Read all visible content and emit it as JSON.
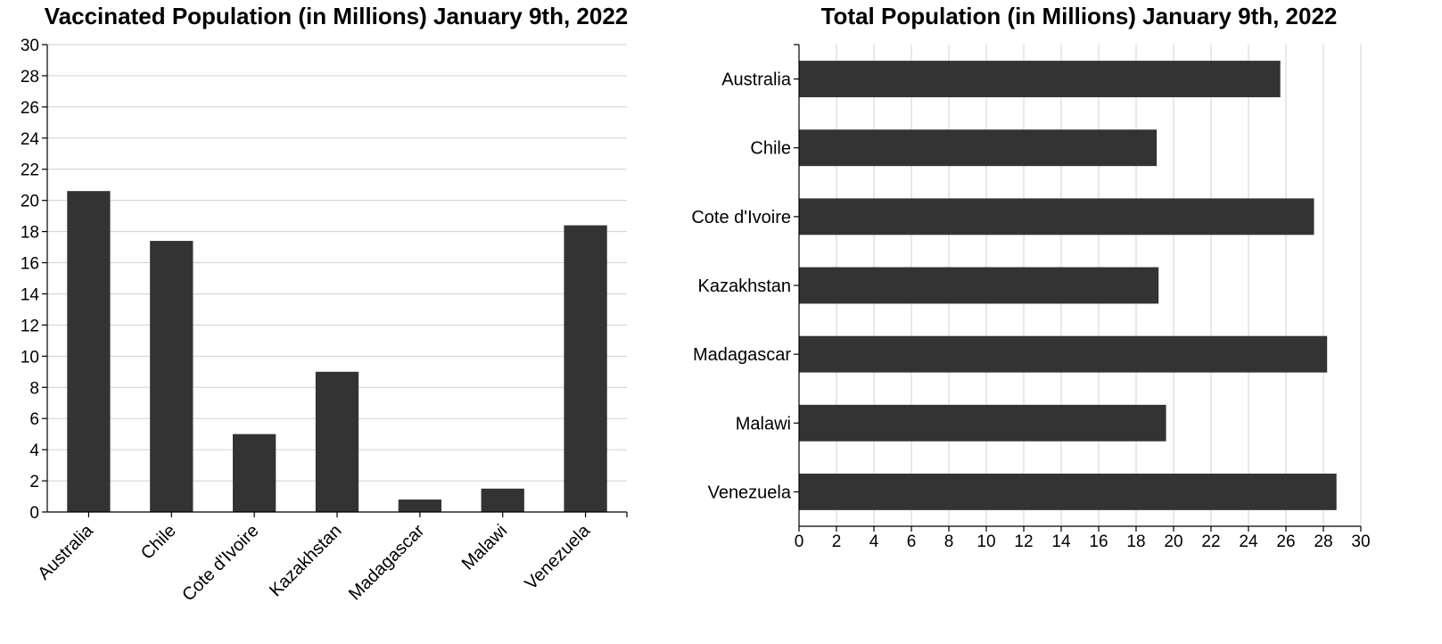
{
  "chart_data": [
    {
      "type": "bar",
      "orientation": "vertical",
      "title": "Vaccinated Population (in Millions) January 9th, 2022",
      "categories": [
        "Australia",
        "Chile",
        "Cote d'Ivoire",
        "Kazakhstan",
        "Madagascar",
        "Malawi",
        "Venezuela"
      ],
      "values": [
        20.6,
        17.4,
        5.0,
        9.0,
        0.8,
        1.5,
        18.4
      ],
      "ylim": [
        0,
        30
      ],
      "yticks": [
        "0",
        "2",
        "4",
        "6",
        "8",
        "10",
        "12",
        "14",
        "16",
        "18",
        "20",
        "22",
        "24",
        "26",
        "28",
        "30"
      ],
      "grid": "horizontal",
      "bar_color": "#333333"
    },
    {
      "type": "bar",
      "orientation": "horizontal",
      "title": "Total Population (in Millions) January 9th, 2022",
      "categories": [
        "Australia",
        "Chile",
        "Cote d'Ivoire",
        "Kazakhstan",
        "Madagascar",
        "Malawi",
        "Venezuela"
      ],
      "values": [
        25.7,
        19.1,
        27.5,
        19.2,
        28.2,
        19.6,
        28.7
      ],
      "xlim": [
        0,
        30
      ],
      "xticks": [
        "0",
        "2",
        "4",
        "6",
        "8",
        "10",
        "12",
        "14",
        "16",
        "18",
        "20",
        "22",
        "24",
        "26",
        "28",
        "30"
      ],
      "grid": "vertical",
      "bar_color": "#333333"
    }
  ]
}
